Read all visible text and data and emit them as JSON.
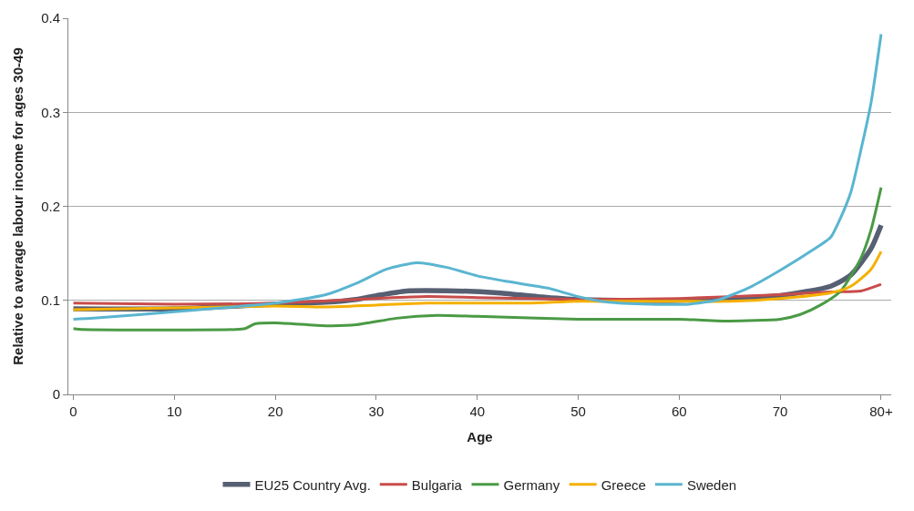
{
  "chart_data": {
    "type": "line",
    "xlabel": "Age",
    "ylabel": "Relative to average labour income for ages 30-49",
    "xlim": [
      -0.5,
      81
    ],
    "xticks": [
      0,
      10,
      20,
      30,
      40,
      50,
      60,
      70,
      {
        "value": 80,
        "label": "80+"
      }
    ],
    "ylim": [
      0,
      0.4
    ],
    "yticks": [
      0,
      0.1,
      0.2,
      0.3,
      0.4
    ],
    "grid": "y",
    "legend": "bottom",
    "marker": "none",
    "line_style": "solid",
    "series": [
      {
        "name": "EU25 Country Avg.",
        "color": "#575f73",
        "x": [
          0,
          10,
          20,
          25,
          28,
          30,
          33,
          38,
          42,
          46,
          50,
          55,
          60,
          65,
          70,
          75,
          77,
          79,
          80
        ],
        "values": [
          0.091,
          0.091,
          0.096,
          0.098,
          0.101,
          0.105,
          0.11,
          0.11,
          0.108,
          0.104,
          0.101,
          0.1,
          0.1,
          0.102,
          0.105,
          0.115,
          0.127,
          0.155,
          0.18
        ]
      },
      {
        "name": "Bulgaria",
        "color": "#c84c4a",
        "x": [
          0,
          10,
          20,
          30,
          35,
          40,
          50,
          60,
          70,
          75,
          78,
          80
        ],
        "values": [
          0.097,
          0.096,
          0.097,
          0.102,
          0.104,
          0.103,
          0.101,
          0.102,
          0.106,
          0.109,
          0.11,
          0.117
        ]
      },
      {
        "name": "Germany",
        "color": "#4a9a45",
        "x": [
          0,
          1,
          16,
          17,
          18,
          20,
          25,
          28,
          32,
          36,
          40,
          50,
          60,
          65,
          70,
          72,
          74,
          76,
          78,
          79,
          80
        ],
        "values": [
          0.07,
          0.069,
          0.069,
          0.07,
          0.075,
          0.076,
          0.073,
          0.074,
          0.081,
          0.084,
          0.083,
          0.08,
          0.08,
          0.078,
          0.08,
          0.085,
          0.095,
          0.11,
          0.145,
          0.175,
          0.22
        ]
      },
      {
        "name": "Greece",
        "color": "#f5b000",
        "x": [
          0,
          10,
          20,
          25,
          30,
          35,
          45,
          50,
          60,
          65,
          70,
          75,
          77,
          79,
          80
        ],
        "values": [
          0.09,
          0.092,
          0.094,
          0.093,
          0.095,
          0.097,
          0.097,
          0.099,
          0.099,
          0.099,
          0.102,
          0.108,
          0.115,
          0.133,
          0.152
        ]
      },
      {
        "name": "Sweden",
        "color": "#5ab5d0",
        "x": [
          0,
          2,
          10,
          20,
          25,
          28,
          31,
          34,
          37,
          40,
          43,
          47,
          50,
          53,
          57,
          61,
          64,
          67,
          70,
          73,
          75,
          76,
          77,
          78,
          79,
          80
        ],
        "values": [
          0.08,
          0.081,
          0.088,
          0.097,
          0.106,
          0.118,
          0.133,
          0.14,
          0.135,
          0.126,
          0.12,
          0.113,
          0.104,
          0.098,
          0.096,
          0.096,
          0.101,
          0.114,
          0.132,
          0.152,
          0.167,
          0.188,
          0.215,
          0.26,
          0.31,
          0.383
        ]
      }
    ]
  }
}
